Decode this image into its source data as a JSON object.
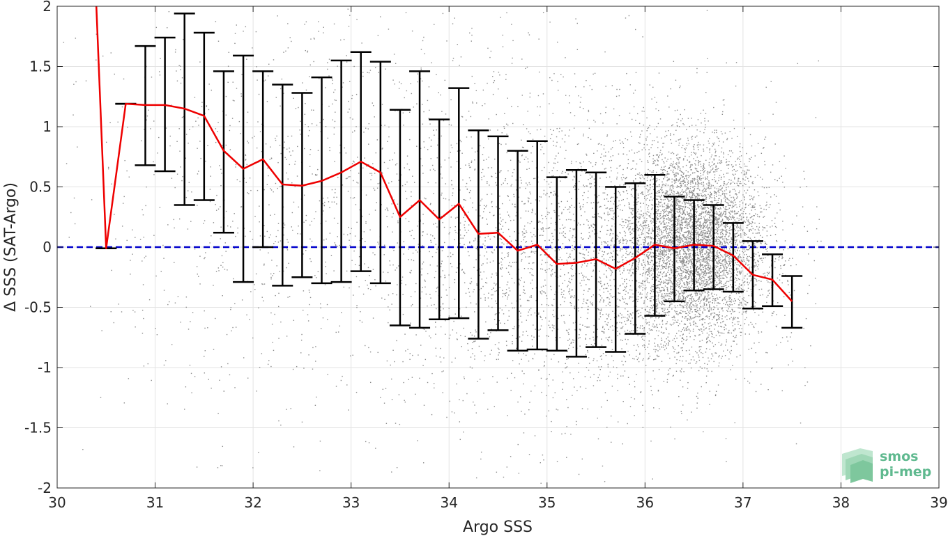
{
  "chart_data": {
    "type": "scatter",
    "xlabel": "Argo SSS",
    "ylabel": "Δ SSS (SAT-Argo)",
    "xlim": [
      30,
      39
    ],
    "ylim": [
      -2,
      2
    ],
    "xticks": [
      30,
      31,
      32,
      33,
      34,
      35,
      36,
      37,
      38,
      39
    ],
    "yticks": [
      -2,
      -1.5,
      -1,
      -0.5,
      0,
      0.5,
      1,
      1.5,
      2
    ],
    "grid": true,
    "reference_line": {
      "y": 0,
      "color": "#0000cc",
      "style": "dashed"
    },
    "series": [
      {
        "type": "line",
        "color": "#ee0000",
        "x": [
          30.4,
          30.5,
          30.7,
          30.9,
          31.1,
          31.3,
          31.5,
          31.7,
          31.9,
          32.1,
          32.3,
          32.5,
          32.7,
          32.9,
          33.1,
          33.3,
          33.5,
          33.7,
          33.9,
          34.1,
          34.3,
          34.5,
          34.7,
          34.9,
          35.1,
          35.3,
          35.5,
          35.7,
          35.9,
          36.1,
          36.3,
          36.5,
          36.7,
          36.9,
          37.1,
          37.3,
          37.5
        ],
        "y": [
          2.0,
          -0.01,
          1.19,
          1.18,
          1.18,
          1.15,
          1.09,
          0.8,
          0.65,
          0.73,
          0.52,
          0.51,
          0.55,
          0.62,
          0.71,
          0.62,
          0.25,
          0.39,
          0.23,
          0.36,
          0.11,
          0.12,
          -0.03,
          0.02,
          -0.14,
          -0.13,
          -0.1,
          -0.18,
          -0.09,
          0.02,
          -0.01,
          0.02,
          0.01,
          -0.07,
          -0.23,
          -0.27,
          -0.45
        ]
      },
      {
        "type": "errorbar",
        "color": "#000000",
        "x": [
          30.5,
          30.7,
          30.9,
          31.1,
          31.3,
          31.5,
          31.7,
          31.9,
          32.1,
          32.3,
          32.5,
          32.7,
          32.9,
          33.1,
          33.3,
          33.5,
          33.7,
          33.9,
          34.1,
          34.3,
          34.5,
          34.7,
          34.9,
          35.1,
          35.3,
          35.5,
          35.7,
          35.9,
          36.1,
          36.3,
          36.5,
          36.7,
          36.9,
          37.1,
          37.3,
          37.5
        ],
        "lower": [
          -0.01,
          1.19,
          0.68,
          0.63,
          0.35,
          0.39,
          0.12,
          -0.29,
          0.0,
          -0.32,
          -0.25,
          -0.3,
          -0.29,
          -0.2,
          -0.3,
          -0.65,
          -0.67,
          -0.6,
          -0.59,
          -0.76,
          -0.69,
          -0.86,
          -0.85,
          -0.86,
          -0.91,
          -0.83,
          -0.87,
          -0.72,
          -0.57,
          -0.45,
          -0.36,
          -0.35,
          -0.37,
          -0.51,
          -0.49,
          -0.67
        ],
        "upper": [
          -0.01,
          1.19,
          1.67,
          1.74,
          1.94,
          1.78,
          1.46,
          1.59,
          1.46,
          1.35,
          1.28,
          1.41,
          1.55,
          1.62,
          1.54,
          1.14,
          1.46,
          1.06,
          1.32,
          0.97,
          0.92,
          0.8,
          0.88,
          0.58,
          0.64,
          0.62,
          0.5,
          0.53,
          0.6,
          0.42,
          0.39,
          0.35,
          0.2,
          0.05,
          -0.06,
          -0.24
        ]
      },
      {
        "type": "scatter",
        "color": "#8c8c8c",
        "description_points": "dense cloud of individual match-up points",
        "clusters": [
          {
            "x_center": 36.5,
            "x_spread": 0.35,
            "y_center": 0.02,
            "y_spread": 0.4,
            "count": 5200
          },
          {
            "x_center": 35.5,
            "x_spread": 0.9,
            "y_center": -0.1,
            "y_spread": 0.6,
            "count": 2600
          },
          {
            "x_center": 33.8,
            "x_spread": 1.6,
            "y_center": 0.3,
            "y_spread": 0.9,
            "count": 1300
          },
          {
            "x_center": 32.2,
            "x_spread": 1.2,
            "y_center": 0.5,
            "y_spread": 0.9,
            "count": 500
          }
        ]
      }
    ]
  },
  "logo": {
    "line1": "smos",
    "line2": "pi-mep"
  }
}
